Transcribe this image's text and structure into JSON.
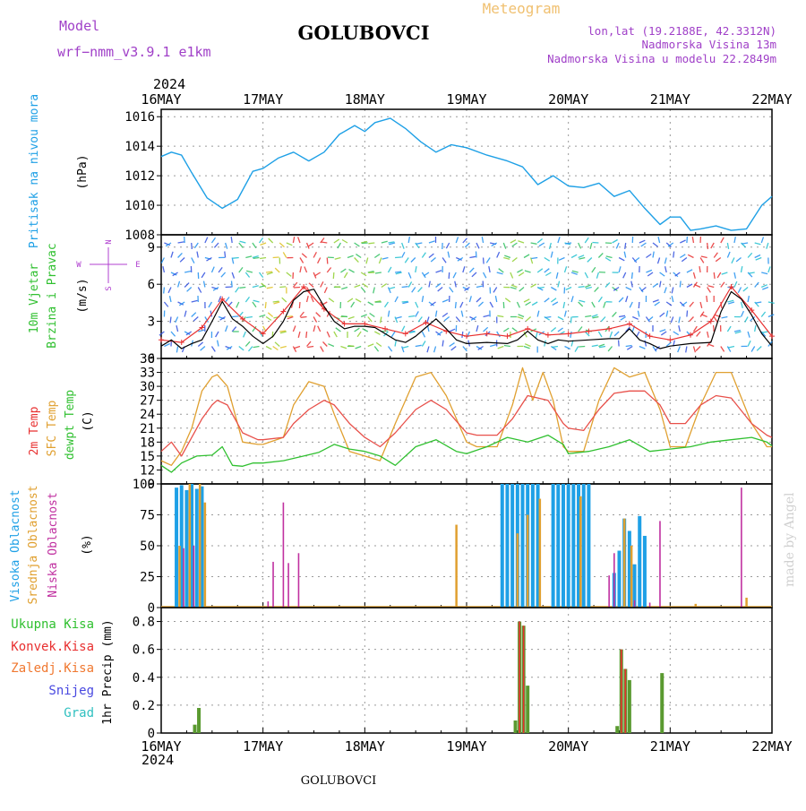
{
  "header": {
    "model_label": "Model",
    "model_name": "wrf−nmm_v3.9.1  e1km",
    "station": "GOLUBOVCI",
    "product": "Meteogram",
    "lonlat": "lon,lat (19.2188E, 42.3312N)",
    "elevation": "Nadmorska Visina 13m",
    "model_elevation": "Nadmorska Visina u modelu 22.2849m",
    "year_top": "2024",
    "year_bottom": "2024",
    "footer_station": "GOLUBOVCI",
    "credit": "made by Angel"
  },
  "colors": {
    "pressure": "#1ea0e6",
    "wind_speed": "#000000",
    "wind_gust": "#e83030",
    "t2m": "#e8504a",
    "sfc": "#e0a030",
    "dewpt": "#30c030",
    "high_cloud": "#1ea0e6",
    "mid_cloud": "#e0a030",
    "low_cloud": "#c030a0",
    "total_precip": "#5a9a30",
    "conv_precip": "#e83030",
    "grid": "#9a9a9a",
    "axis_label_pressure": "#1ea0e6",
    "axis_label_wind": "#30c030",
    "compass": "#b040d0"
  },
  "x_axis": {
    "start": "16MAY",
    "end": "22MAY",
    "tick_labels": [
      "16MAY",
      "17MAY",
      "18MAY",
      "19MAY",
      "20MAY",
      "21MAY",
      "22MAY"
    ],
    "unit": "days"
  },
  "panel_labels": {
    "pressure": {
      "title": "Pritisak na nivou mora",
      "unit": "(hPa)"
    },
    "wind": {
      "title1": "10m Vjetar",
      "title2": "Brzina i Pravac",
      "unit": "(m/s)"
    },
    "compass": {
      "n": "N",
      "w": "W",
      "e": "E",
      "s": "S"
    },
    "temp": {
      "t2m": "2m Temp",
      "sfc": "SFC Temp",
      "dew": "dewpt Temp",
      "unit": "(C)"
    },
    "cloud": {
      "high": "Visoka Oblacnost",
      "mid": "Srednja Oblacnost",
      "low": "Niska Oblacnost",
      "unit": "(%)"
    },
    "precip": {
      "legend": [
        "Ukupna Kisa",
        "Konvek.Kisa",
        "Zaledj.Kisa",
        "Snijeg",
        "Grad"
      ],
      "legend_colors": [
        "#30c030",
        "#e83030",
        "#f07830",
        "#4848e0",
        "#30c0c0"
      ],
      "axis_title": "1hr Precip (mm)"
    }
  },
  "chart_data": [
    {
      "type": "line",
      "name": "pressure",
      "ylim": [
        1008,
        1016.5
      ],
      "yticks": [
        1008,
        1010,
        1012,
        1014,
        1016
      ],
      "x": [
        0,
        0.1,
        0.2,
        0.3,
        0.45,
        0.6,
        0.75,
        0.9,
        1.0,
        1.15,
        1.3,
        1.45,
        1.6,
        1.75,
        1.9,
        2.0,
        2.1,
        2.25,
        2.4,
        2.55,
        2.7,
        2.85,
        3.0,
        3.2,
        3.4,
        3.55,
        3.7,
        3.85,
        4.0,
        4.15,
        4.3,
        4.45,
        4.6,
        4.75,
        4.9,
        5.0,
        5.1,
        5.2,
        5.3,
        5.45,
        5.6,
        5.75,
        5.9,
        6.0
      ],
      "y": [
        1013.3,
        1013.6,
        1013.4,
        1012.2,
        1010.5,
        1009.8,
        1010.4,
        1012.3,
        1012.5,
        1013.2,
        1013.6,
        1013.0,
        1013.6,
        1014.8,
        1015.4,
        1015.0,
        1015.6,
        1015.9,
        1015.2,
        1014.3,
        1013.6,
        1014.1,
        1013.9,
        1013.4,
        1013.0,
        1012.6,
        1011.4,
        1012.0,
        1011.3,
        1011.2,
        1011.5,
        1010.6,
        1011.0,
        1009.8,
        1008.7,
        1009.2,
        1009.2,
        1008.3,
        1008.4,
        1008.6,
        1008.3,
        1008.4,
        1010.0,
        1010.6
      ]
    },
    {
      "type": "line",
      "name": "wind",
      "ylim": [
        0,
        10
      ],
      "yticks": [
        0,
        3,
        6,
        9
      ],
      "series": [
        {
          "name": "speed",
          "x": [
            0,
            0.1,
            0.2,
            0.3,
            0.4,
            0.5,
            0.6,
            0.7,
            0.8,
            0.9,
            1.0,
            1.1,
            1.2,
            1.3,
            1.4,
            1.5,
            1.6,
            1.7,
            1.8,
            1.9,
            2.0,
            2.1,
            2.2,
            2.3,
            2.4,
            2.5,
            2.6,
            2.7,
            2.8,
            2.9,
            3.0,
            3.2,
            3.4,
            3.5,
            3.6,
            3.7,
            3.8,
            3.9,
            4.0,
            4.2,
            4.4,
            4.5,
            4.6,
            4.7,
            4.8,
            4.9,
            5.0,
            5.2,
            5.4,
            5.5,
            5.6,
            5.7,
            5.8,
            5.9,
            6.0
          ],
          "y": [
            1.0,
            1.5,
            0.8,
            1.2,
            1.5,
            3.0,
            4.6,
            3.2,
            2.6,
            1.8,
            1.2,
            1.8,
            3.0,
            4.7,
            5.4,
            5.6,
            4.2,
            3.0,
            2.4,
            2.6,
            2.6,
            2.5,
            2.0,
            1.5,
            1.3,
            1.8,
            2.5,
            3.2,
            2.4,
            1.5,
            1.2,
            1.3,
            1.2,
            1.5,
            2.2,
            1.5,
            1.2,
            1.5,
            1.4,
            1.5,
            1.6,
            1.6,
            2.4,
            1.5,
            1.2,
            0.8,
            1.0,
            1.2,
            1.3,
            3.8,
            5.4,
            4.8,
            3.5,
            2.0,
            1.0
          ]
        },
        {
          "name": "gust",
          "x": [
            0,
            0.2,
            0.4,
            0.6,
            0.8,
            1.0,
            1.2,
            1.4,
            1.6,
            1.8,
            2.0,
            2.2,
            2.4,
            2.6,
            2.8,
            3.0,
            3.2,
            3.4,
            3.6,
            3.8,
            4.0,
            4.2,
            4.4,
            4.6,
            4.8,
            5.0,
            5.2,
            5.4,
            5.6,
            5.8,
            6.0
          ],
          "y": [
            1.5,
            1.3,
            2.5,
            4.8,
            3.2,
            2.0,
            3.8,
            5.8,
            4.0,
            2.8,
            2.8,
            2.4,
            2.0,
            2.9,
            2.2,
            1.8,
            2.0,
            1.8,
            2.4,
            1.9,
            2.0,
            2.2,
            2.4,
            2.8,
            1.8,
            1.5,
            1.9,
            3.0,
            5.8,
            3.9,
            1.8
          ]
        }
      ]
    },
    {
      "type": "line",
      "name": "temperature",
      "ylim": [
        9,
        36
      ],
      "yticks": [
        9,
        12,
        15,
        18,
        21,
        24,
        27,
        30,
        33,
        36
      ],
      "series": [
        {
          "name": "2m Temp",
          "x": [
            0,
            0.1,
            0.2,
            0.3,
            0.4,
            0.5,
            0.55,
            0.65,
            0.8,
            0.95,
            1.0,
            1.2,
            1.3,
            1.45,
            1.6,
            1.7,
            1.85,
            2.0,
            2.15,
            2.3,
            2.5,
            2.65,
            2.8,
            3.0,
            3.1,
            3.3,
            3.45,
            3.6,
            3.8,
            3.95,
            4.0,
            4.15,
            4.3,
            4.45,
            4.6,
            4.75,
            4.9,
            5.0,
            5.15,
            5.3,
            5.45,
            5.6,
            5.8,
            5.95,
            6.0
          ],
          "y": [
            16,
            18,
            15,
            19,
            23,
            26,
            27,
            26,
            20,
            18.5,
            18.5,
            19,
            22,
            25,
            27,
            26,
            22,
            19,
            17,
            20,
            25,
            27,
            25,
            20,
            19.5,
            19.5,
            23,
            28,
            27,
            22,
            21,
            20.5,
            25,
            28.5,
            29,
            29,
            26,
            22,
            22,
            26,
            28,
            27.5,
            22,
            19.5,
            19
          ]
        },
        {
          "name": "SFC Temp",
          "x": [
            0,
            0.1,
            0.2,
            0.3,
            0.4,
            0.5,
            0.55,
            0.65,
            0.8,
            0.95,
            1.0,
            1.2,
            1.3,
            1.45,
            1.6,
            1.7,
            1.85,
            2.0,
            2.15,
            2.3,
            2.5,
            2.65,
            2.8,
            3.0,
            3.1,
            3.3,
            3.45,
            3.55,
            3.65,
            3.75,
            3.85,
            3.95,
            4.0,
            4.15,
            4.3,
            4.45,
            4.6,
            4.75,
            4.9,
            5.0,
            5.15,
            5.3,
            5.45,
            5.6,
            5.8,
            5.95,
            6.0
          ],
          "y": [
            14,
            13,
            16,
            21,
            29,
            32,
            32.5,
            30,
            18,
            17.5,
            17.5,
            19,
            26,
            31,
            30,
            24,
            16,
            15,
            14,
            22,
            32,
            33,
            28,
            18,
            17,
            17,
            26,
            34,
            27,
            33,
            27,
            17,
            16,
            16,
            27,
            34,
            32,
            33,
            25,
            17,
            17,
            26,
            33,
            33,
            22,
            17,
            17
          ]
        },
        {
          "name": "dewpt Temp",
          "x": [
            0,
            0.1,
            0.2,
            0.35,
            0.5,
            0.6,
            0.7,
            0.8,
            0.9,
            1.0,
            1.2,
            1.4,
            1.55,
            1.7,
            1.85,
            2.0,
            2.15,
            2.3,
            2.5,
            2.7,
            2.9,
            3.0,
            3.2,
            3.4,
            3.6,
            3.8,
            3.95,
            4.0,
            4.2,
            4.4,
            4.6,
            4.8,
            5.0,
            5.2,
            5.4,
            5.6,
            5.8,
            5.95,
            6.0
          ],
          "y": [
            13,
            11.5,
            13.5,
            15,
            15.2,
            17,
            13,
            12.8,
            13.5,
            13.5,
            14,
            15,
            15.8,
            17.5,
            16.5,
            16,
            15,
            13,
            17,
            18.5,
            16,
            15.5,
            17,
            19,
            18,
            19.5,
            17.5,
            15.5,
            16,
            17,
            18.5,
            16,
            16.5,
            17,
            18,
            18.5,
            19,
            18,
            17.2
          ]
        }
      ]
    },
    {
      "type": "bar",
      "name": "clouds",
      "ylim": [
        0,
        100
      ],
      "yticks": [
        0,
        25,
        50,
        75,
        100
      ],
      "series": [
        {
          "name": "Visoka Oblacnost",
          "x": [
            0.15,
            0.2,
            0.25,
            0.3,
            0.35,
            0.4,
            3.35,
            3.4,
            3.45,
            3.5,
            3.55,
            3.6,
            3.65,
            3.7,
            3.85,
            3.9,
            3.95,
            4.0,
            4.05,
            4.1,
            4.15,
            4.2,
            4.45,
            4.5,
            4.55,
            4.6,
            4.65,
            4.7,
            4.75
          ],
          "y": [
            97,
            99,
            95,
            100,
            96,
            98,
            100,
            100,
            100,
            100,
            100,
            100,
            100,
            100,
            100,
            100,
            100,
            100,
            100,
            100,
            100,
            100,
            28,
            46,
            72,
            62,
            35,
            74,
            58
          ]
        },
        {
          "name": "Srednja Oblacnost",
          "x": [
            0.18,
            0.28,
            0.38,
            0.43,
            2.9,
            3.5,
            3.6,
            3.72,
            4.12,
            4.55,
            4.62,
            5.25,
            5.75
          ],
          "y": [
            50,
            100,
            100,
            85,
            67,
            60,
            75,
            88,
            90,
            72,
            50,
            3,
            8
          ]
        },
        {
          "name": "Niska Oblacnost",
          "x": [
            0.22,
            0.32,
            1.05,
            1.1,
            1.2,
            1.25,
            1.35,
            4.4,
            4.45,
            4.65,
            4.8,
            4.9,
            5.7
          ],
          "y": [
            48,
            50,
            5,
            37,
            85,
            36,
            44,
            26,
            44,
            6,
            4,
            70,
            97
          ]
        }
      ]
    },
    {
      "type": "bar",
      "name": "precipitation",
      "ylim": [
        0,
        0.9
      ],
      "yticks": [
        0,
        0.2,
        0.4,
        0.6,
        0.8
      ],
      "series": [
        {
          "name": "Ukupna Kisa",
          "x": [
            0.33,
            0.37,
            3.48,
            3.52,
            3.56,
            3.6,
            4.48,
            4.52,
            4.56,
            4.6,
            4.92
          ],
          "y": [
            0.06,
            0.18,
            0.09,
            0.8,
            0.77,
            0.34,
            0.05,
            0.6,
            0.46,
            0.38,
            0.43
          ]
        },
        {
          "name": "Konvek.Kisa",
          "x": [
            3.52,
            3.56,
            4.52,
            4.56
          ],
          "y": [
            0.8,
            0.77,
            0.6,
            0.46
          ]
        }
      ]
    }
  ]
}
